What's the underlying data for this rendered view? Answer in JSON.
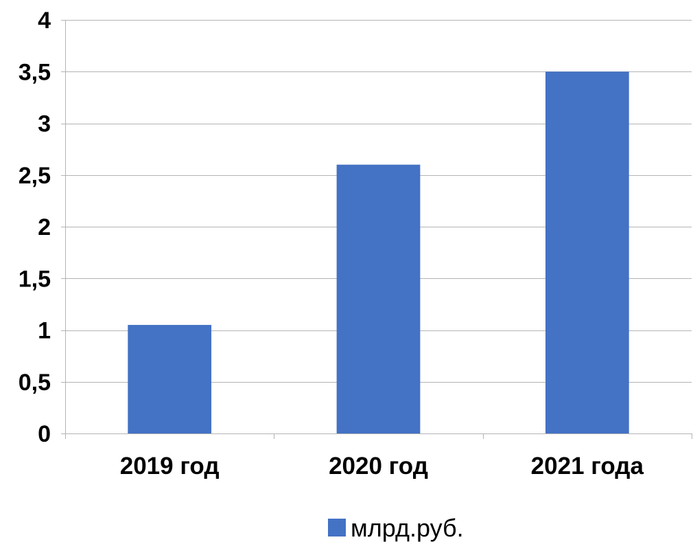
{
  "chart_data": {
    "type": "bar",
    "categories": [
      "2019 год",
      "2020 год",
      "2021 года"
    ],
    "series": [
      {
        "name": "млрд.руб.",
        "values": [
          1.05,
          2.6,
          3.5
        ],
        "color": "#4472c4"
      }
    ],
    "ylim": [
      0,
      4
    ],
    "y_ticks": [
      0,
      0.5,
      1,
      1.5,
      2,
      2.5,
      3,
      3.5,
      4
    ],
    "y_tick_labels": [
      "0",
      "0,5",
      "1",
      "1,5",
      "2",
      "2,5",
      "3",
      "3,5",
      "4"
    ],
    "grid": true,
    "legend_position": "bottom",
    "title": "",
    "xlabel": "",
    "ylabel": ""
  }
}
